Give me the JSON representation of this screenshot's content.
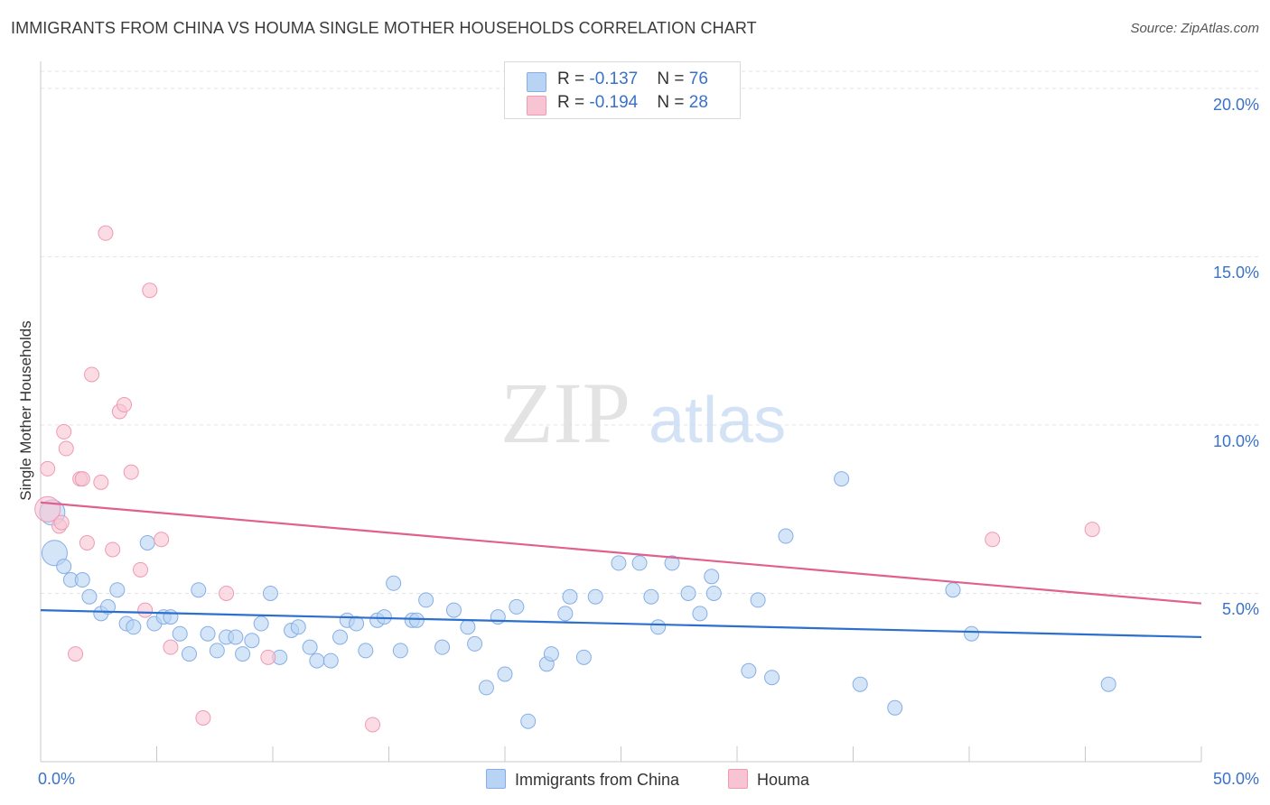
{
  "header": {
    "title": "IMMIGRANTS FROM CHINA VS HOUMA SINGLE MOTHER HOUSEHOLDS CORRELATION CHART",
    "source": "Source: ZipAtlas.com"
  },
  "watermark": {
    "zip": "ZIP",
    "atlas": "atlas"
  },
  "colors": {
    "china_fill": "#b8d3f3",
    "china_stroke": "#86aee6",
    "china_line": "#2c6fcc",
    "houma_fill": "#f8c4d3",
    "houma_stroke": "#ee9ab3",
    "houma_line": "#e0608e",
    "grid": "#e3e3e3",
    "axis_text": "#3a72c8"
  },
  "legend": {
    "china": {
      "r_label": "R = ",
      "r_value": "-0.137",
      "n_label": "N = ",
      "n_value": "76"
    },
    "houma": {
      "r_label": "R = ",
      "r_value": "-0.194",
      "n_label": "N = ",
      "n_value": "28"
    }
  },
  "chart_data": {
    "type": "scatter",
    "title": "IMMIGRANTS FROM CHINA VS HOUMA SINGLE MOTHER HOUSEHOLDS CORRELATION CHART",
    "xlabel": "",
    "ylabel": "Single Mother Households",
    "xlim": [
      0,
      50
    ],
    "ylim": [
      0,
      20.8
    ],
    "x_tick_labels": [
      "0.0%",
      "50.0%"
    ],
    "y_ticks": [
      5,
      10,
      15,
      20
    ],
    "y_tick_labels": [
      "5.0%",
      "10.0%",
      "15.0%",
      "20.0%"
    ],
    "grid": true,
    "legend_position": "top-center",
    "series": [
      {
        "name": "Immigrants from China",
        "trend": {
          "x": [
            0,
            50
          ],
          "y": [
            4.5,
            3.7
          ]
        },
        "points": [
          {
            "x": 0.5,
            "y": 7.4,
            "big": true
          },
          {
            "x": 0.6,
            "y": 6.2,
            "big": true
          },
          {
            "x": 1.0,
            "y": 5.8
          },
          {
            "x": 1.3,
            "y": 5.4
          },
          {
            "x": 1.8,
            "y": 5.4
          },
          {
            "x": 2.1,
            "y": 4.9
          },
          {
            "x": 2.6,
            "y": 4.4
          },
          {
            "x": 2.9,
            "y": 4.6
          },
          {
            "x": 3.3,
            "y": 5.1
          },
          {
            "x": 3.7,
            "y": 4.1
          },
          {
            "x": 4.0,
            "y": 4.0
          },
          {
            "x": 4.6,
            "y": 6.5
          },
          {
            "x": 4.9,
            "y": 4.1
          },
          {
            "x": 5.3,
            "y": 4.3
          },
          {
            "x": 5.6,
            "y": 4.3
          },
          {
            "x": 6.0,
            "y": 3.8
          },
          {
            "x": 6.4,
            "y": 3.2
          },
          {
            "x": 6.8,
            "y": 5.1
          },
          {
            "x": 7.2,
            "y": 3.8
          },
          {
            "x": 7.6,
            "y": 3.3
          },
          {
            "x": 8.0,
            "y": 3.7
          },
          {
            "x": 8.4,
            "y": 3.7
          },
          {
            "x": 8.7,
            "y": 3.2
          },
          {
            "x": 9.1,
            "y": 3.6
          },
          {
            "x": 9.5,
            "y": 4.1
          },
          {
            "x": 9.9,
            "y": 5.0
          },
          {
            "x": 10.3,
            "y": 3.1
          },
          {
            "x": 10.8,
            "y": 3.9
          },
          {
            "x": 11.1,
            "y": 4.0
          },
          {
            "x": 11.6,
            "y": 3.4
          },
          {
            "x": 11.9,
            "y": 3.0
          },
          {
            "x": 12.5,
            "y": 3.0
          },
          {
            "x": 12.9,
            "y": 3.7
          },
          {
            "x": 13.2,
            "y": 4.2
          },
          {
            "x": 13.6,
            "y": 4.1
          },
          {
            "x": 14.0,
            "y": 3.3
          },
          {
            "x": 14.5,
            "y": 4.2
          },
          {
            "x": 14.8,
            "y": 4.3
          },
          {
            "x": 15.2,
            "y": 5.3
          },
          {
            "x": 15.5,
            "y": 3.3
          },
          {
            "x": 16.0,
            "y": 4.2
          },
          {
            "x": 16.2,
            "y": 4.2
          },
          {
            "x": 16.6,
            "y": 4.8
          },
          {
            "x": 17.3,
            "y": 3.4
          },
          {
            "x": 17.8,
            "y": 4.5
          },
          {
            "x": 18.4,
            "y": 4.0
          },
          {
            "x": 18.7,
            "y": 3.5
          },
          {
            "x": 19.2,
            "y": 2.2
          },
          {
            "x": 19.7,
            "y": 4.3
          },
          {
            "x": 20.0,
            "y": 2.6
          },
          {
            "x": 20.5,
            "y": 4.6
          },
          {
            "x": 21.0,
            "y": 1.2
          },
          {
            "x": 21.8,
            "y": 2.9
          },
          {
            "x": 22.0,
            "y": 3.2
          },
          {
            "x": 22.6,
            "y": 4.4
          },
          {
            "x": 22.8,
            "y": 4.9
          },
          {
            "x": 23.4,
            "y": 3.1
          },
          {
            "x": 23.9,
            "y": 4.9
          },
          {
            "x": 24.9,
            "y": 5.9
          },
          {
            "x": 25.8,
            "y": 5.9
          },
          {
            "x": 26.3,
            "y": 4.9
          },
          {
            "x": 26.6,
            "y": 4.0
          },
          {
            "x": 27.2,
            "y": 5.9
          },
          {
            "x": 27.9,
            "y": 5.0
          },
          {
            "x": 28.4,
            "y": 4.4
          },
          {
            "x": 28.9,
            "y": 5.5
          },
          {
            "x": 29.0,
            "y": 5.0
          },
          {
            "x": 30.5,
            "y": 2.7
          },
          {
            "x": 30.9,
            "y": 4.8
          },
          {
            "x": 31.5,
            "y": 2.5
          },
          {
            "x": 32.1,
            "y": 6.7
          },
          {
            "x": 34.5,
            "y": 8.4
          },
          {
            "x": 35.3,
            "y": 2.3
          },
          {
            "x": 36.8,
            "y": 1.6
          },
          {
            "x": 39.3,
            "y": 5.1
          },
          {
            "x": 40.1,
            "y": 3.8
          },
          {
            "x": 46.0,
            "y": 2.3
          }
        ]
      },
      {
        "name": "Houma",
        "trend": {
          "x": [
            0,
            50
          ],
          "y": [
            7.7,
            4.7
          ]
        },
        "points": [
          {
            "x": 0.3,
            "y": 7.5,
            "big": true
          },
          {
            "x": 0.3,
            "y": 8.7
          },
          {
            "x": 0.8,
            "y": 7.0
          },
          {
            "x": 0.9,
            "y": 7.1
          },
          {
            "x": 1.0,
            "y": 9.8
          },
          {
            "x": 1.1,
            "y": 9.3
          },
          {
            "x": 1.5,
            "y": 3.2
          },
          {
            "x": 1.7,
            "y": 8.4
          },
          {
            "x": 1.8,
            "y": 8.4
          },
          {
            "x": 2.0,
            "y": 6.5
          },
          {
            "x": 2.2,
            "y": 11.5
          },
          {
            "x": 2.6,
            "y": 8.3
          },
          {
            "x": 2.8,
            "y": 15.7
          },
          {
            "x": 3.1,
            "y": 6.3
          },
          {
            "x": 3.4,
            "y": 10.4
          },
          {
            "x": 3.6,
            "y": 10.6
          },
          {
            "x": 3.9,
            "y": 8.6
          },
          {
            "x": 4.3,
            "y": 5.7
          },
          {
            "x": 4.5,
            "y": 4.5
          },
          {
            "x": 4.7,
            "y": 14.0
          },
          {
            "x": 5.2,
            "y": 6.6
          },
          {
            "x": 5.6,
            "y": 3.4
          },
          {
            "x": 7.0,
            "y": 1.3
          },
          {
            "x": 8.0,
            "y": 5.0
          },
          {
            "x": 9.8,
            "y": 3.1
          },
          {
            "x": 14.3,
            "y": 1.1
          },
          {
            "x": 41.0,
            "y": 6.6
          },
          {
            "x": 45.3,
            "y": 6.9
          }
        ]
      }
    ]
  }
}
